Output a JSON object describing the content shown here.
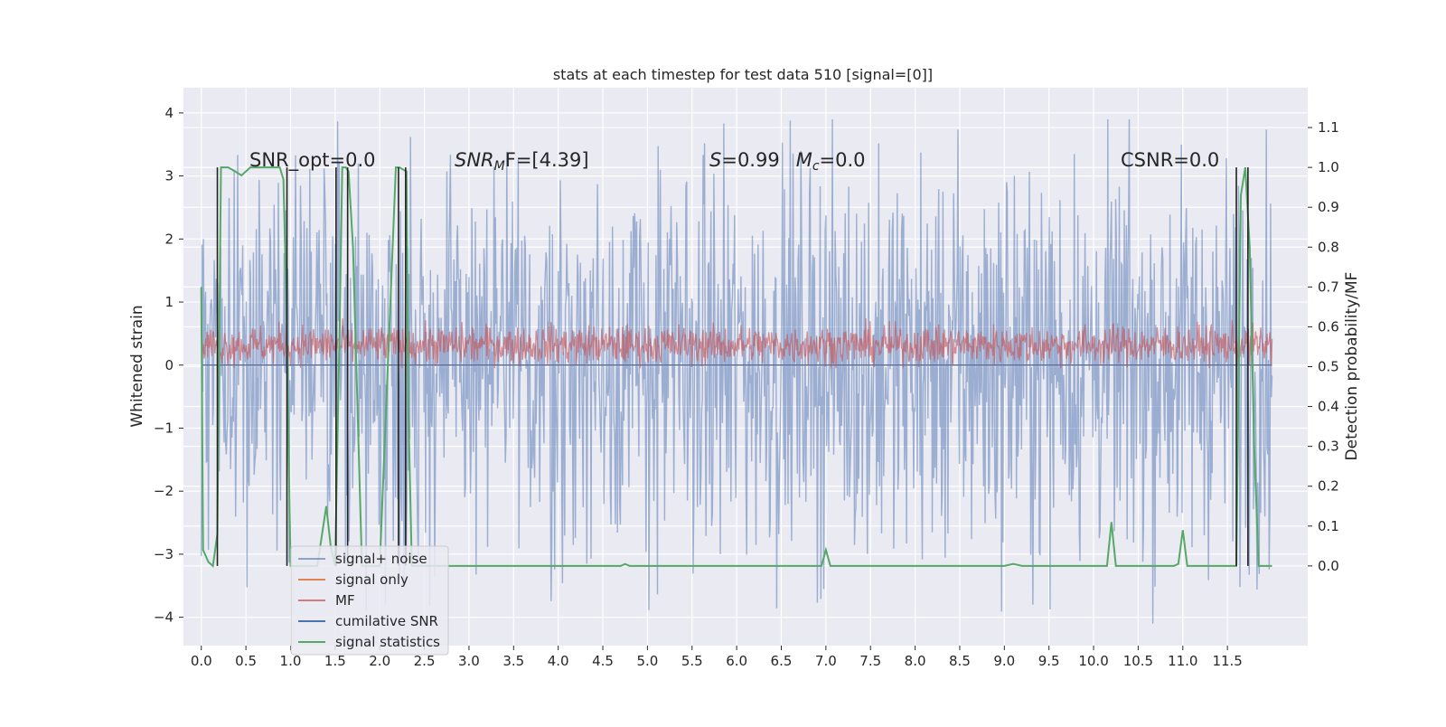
{
  "chart_data": {
    "type": "line",
    "title": "stats at each timestep for test data 510 [signal=[0]]",
    "xlabel": "",
    "ylabel_left": "Whitened strain",
    "ylabel_right": "Detection probability/MF",
    "xlim": [
      -0.2,
      12.4
    ],
    "ylim_left": [
      -4.45,
      4.4
    ],
    "ylim_right": [
      -0.2,
      1.2
    ],
    "x_ticks": [
      "0.0",
      "0.5",
      "1.0",
      "1.5",
      "2.0",
      "2.5",
      "3.0",
      "3.5",
      "4.0",
      "4.5",
      "5.0",
      "5.5",
      "6.0",
      "6.5",
      "7.0",
      "7.5",
      "8.0",
      "8.5",
      "9.0",
      "9.5",
      "10.0",
      "10.5",
      "11.0",
      "11.5"
    ],
    "y_ticks_left": [
      "4",
      "3",
      "2",
      "1",
      "0",
      "−1",
      "−2",
      "−3",
      "−4"
    ],
    "y_ticks_right": [
      "1.1",
      "1.0",
      "0.9",
      "0.8",
      "0.7",
      "0.6",
      "0.5",
      "0.4",
      "0.3",
      "0.2",
      "0.1",
      "0.0"
    ],
    "grid": true,
    "legend_position": "lower-left",
    "annotations": {
      "snr_opt": "SNR_opt=0.0",
      "snr_mf_sym": "SNR",
      "snr_mf_sub": "M",
      "snr_mf_rest": "F=[4.39]",
      "s_sym": "S",
      "s_val": "=0.99",
      "mc_sym": "M",
      "mc_sub": "c",
      "mc_val": "=0.0",
      "csnr": "CSNR=0.0"
    },
    "series": [
      {
        "name": "signal+ noise",
        "color": "#4c72b0",
        "description_range": "noise band approx -2.6 to 3.1, spikes to ±4",
        "samples": {
          "x_start": 0.0,
          "x_end": 12.0,
          "y_center": 0.05,
          "y_spread": 1.9
        }
      },
      {
        "name": "signal only",
        "color": "#dd8452",
        "samples": {
          "x_start": 0.0,
          "x_end": 12.0,
          "y_const": 0.0
        }
      },
      {
        "name": "MF",
        "color": "#c44e52",
        "samples": {
          "x_start": 0.0,
          "x_end": 12.0,
          "y_center": 0.32,
          "y_spread": 0.28
        }
      },
      {
        "name": "cumilative SNR",
        "color": "#4c72b0",
        "samples": {
          "x_start": 0.0,
          "x_end": 12.0,
          "y_const": 0.0
        }
      },
      {
        "name": "signal statistics",
        "color": "#55a868",
        "axis": "right",
        "x": [
          0.0,
          0.02,
          0.08,
          0.13,
          0.18,
          0.22,
          0.26,
          0.3,
          0.38,
          0.45,
          0.55,
          0.6,
          0.7,
          0.8,
          0.88,
          0.92,
          0.95,
          1.0,
          1.2,
          1.3,
          1.4,
          1.45,
          1.5,
          1.55,
          1.58,
          1.62,
          1.65,
          1.7,
          1.8,
          2.0,
          2.18,
          2.22,
          2.3,
          2.32,
          2.36,
          2.5,
          3.0,
          4.0,
          4.7,
          4.75,
          4.8,
          5.0,
          6.0,
          6.95,
          7.0,
          7.05,
          7.5,
          8.0,
          9.0,
          9.1,
          9.2,
          9.5,
          10.0,
          10.15,
          10.2,
          10.25,
          10.5,
          10.9,
          10.95,
          11.0,
          11.05,
          11.5,
          11.6,
          11.65,
          11.7,
          11.75,
          11.8,
          11.85,
          11.9,
          12.0
        ],
        "y": [
          0.7,
          0.04,
          0.01,
          0.0,
          0.08,
          1.0,
          1.0,
          1.0,
          0.99,
          0.98,
          1.0,
          1.0,
          1.0,
          1.0,
          1.0,
          0.97,
          0.7,
          0.0,
          0.0,
          0.0,
          0.15,
          0.05,
          0.0,
          0.6,
          1.0,
          1.0,
          0.99,
          0.8,
          0.0,
          0.0,
          1.0,
          1.0,
          0.99,
          0.4,
          0.0,
          0.0,
          0.0,
          0.0,
          0.0,
          0.005,
          0.0,
          0.0,
          0.0,
          0.0,
          0.04,
          0.0,
          0.0,
          0.0,
          0.0,
          0.005,
          0.0,
          0.0,
          0.0,
          0.0,
          0.11,
          0.0,
          0.0,
          0.0,
          0.005,
          0.09,
          0.0,
          0.0,
          0.0,
          0.93,
          1.0,
          0.8,
          0.3,
          0.0,
          0.0,
          0.0
        ]
      }
    ],
    "black_lines_x": [
      0.18,
      0.96,
      1.51,
      1.64,
      2.21,
      2.29,
      11.6,
      11.73
    ]
  }
}
